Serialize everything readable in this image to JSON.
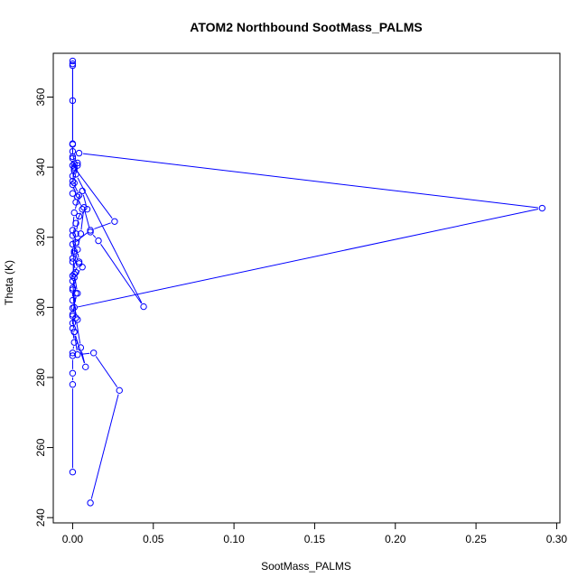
{
  "chart_data": {
    "type": "line",
    "title": "ATOM2 Northbound SootMass_PALMS",
    "xlabel": "SootMass_PALMS",
    "ylabel": "Theta (K)",
    "xlim": [
      -0.012,
      0.302
    ],
    "ylim": [
      238.5,
      372.5
    ],
    "x_ticks": [
      0.0,
      0.05,
      0.1,
      0.15,
      0.2,
      0.25,
      0.3
    ],
    "x_tick_labels": [
      "0.00",
      "0.05",
      "0.10",
      "0.15",
      "0.20",
      "0.25",
      "0.30"
    ],
    "y_ticks": [
      240,
      260,
      280,
      300,
      320,
      340,
      360
    ],
    "y_tick_labels": [
      "240",
      "260",
      "280",
      "300",
      "320",
      "340",
      "360"
    ],
    "grid": false,
    "series_color": "#0000ff",
    "series": [
      {
        "points": [
          [
            0.011,
            244.2
          ],
          [
            0.029,
            276.3
          ],
          [
            0.013,
            287.0
          ],
          [
            0.003,
            286.5
          ],
          [
            0.001,
            293.0
          ],
          [
            0.0,
            297.5
          ],
          [
            0.002,
            304.0
          ],
          [
            0.0,
            309.0
          ],
          [
            0.004,
            312.5
          ],
          [
            0.001,
            316.0
          ],
          [
            0.0,
            320.5
          ],
          [
            0.002,
            324.0
          ],
          [
            0.006,
            328.0
          ],
          [
            0.003,
            331.5
          ],
          [
            0.0,
            335.0
          ],
          [
            0.001,
            340.0
          ],
          [
            0.003,
            341.2
          ],
          [
            0.001,
            339.0
          ],
          [
            0.0,
            343.0
          ],
          [
            0.0,
            346.5
          ],
          [
            0.0,
            359.0
          ],
          [
            0.0,
            369.0
          ],
          [
            0.0,
            370.3
          ],
          [
            0.0,
            369.5
          ],
          [
            0.0,
            346.7
          ],
          [
            0.0,
            342.5
          ],
          [
            0.0,
            340.5
          ],
          [
            0.026,
            324.5
          ],
          [
            0.011,
            322.0
          ],
          [
            0.0,
            318.0
          ],
          [
            0.0,
            314.0
          ],
          [
            0.002,
            310.0
          ],
          [
            0.0,
            305.0
          ],
          [
            0.001,
            300.0
          ],
          [
            0.0,
            298.0
          ],
          [
            0.0,
            294.0
          ],
          [
            0.001,
            290.0
          ],
          [
            0.0,
            287.0
          ],
          [
            0.0,
            286.2
          ],
          [
            0.0,
            281.2
          ],
          [
            0.0,
            278.0
          ],
          [
            0.0,
            253.0
          ]
        ]
      },
      {
        "points": [
          [
            0.004,
            344.0
          ],
          [
            0.291,
            328.3
          ],
          [
            0.0,
            299.8
          ],
          [
            0.003,
            304.0
          ],
          [
            0.001,
            309.5
          ],
          [
            0.0,
            313.0
          ],
          [
            0.002,
            318.5
          ],
          [
            0.0,
            322.0
          ],
          [
            0.001,
            327.0
          ],
          [
            0.004,
            332.0
          ],
          [
            0.0,
            336.0
          ],
          [
            0.001,
            339.5
          ],
          [
            0.002,
            338.0
          ],
          [
            0.044,
            300.2
          ],
          [
            0.016,
            319.0
          ],
          [
            0.011,
            321.5
          ],
          [
            0.007,
            328.5
          ],
          [
            0.005,
            321.0
          ],
          [
            0.003,
            316.5
          ],
          [
            0.004,
            313.0
          ],
          [
            0.006,
            311.5
          ],
          [
            0.001,
            308.5
          ],
          [
            0.0,
            305.5
          ],
          [
            0.0,
            302.0
          ],
          [
            0.003,
            296.5
          ],
          [
            0.0,
            295.5
          ],
          [
            0.001,
            293.0
          ],
          [
            0.008,
            283.0
          ],
          [
            0.005,
            288.5
          ],
          [
            0.002,
            297.0
          ],
          [
            0.0,
            307.5
          ],
          [
            0.001,
            315.5
          ],
          [
            0.002,
            321.0
          ],
          [
            0.004,
            326.0
          ],
          [
            0.009,
            328.0
          ],
          [
            0.006,
            333.2
          ],
          [
            0.002,
            330.0
          ],
          [
            0.0,
            332.5
          ],
          [
            0.001,
            335.5
          ],
          [
            0.0,
            337.5
          ],
          [
            0.003,
            340.5
          ],
          [
            0.001,
            341.0
          ],
          [
            0.0,
            344.5
          ]
        ]
      }
    ]
  }
}
